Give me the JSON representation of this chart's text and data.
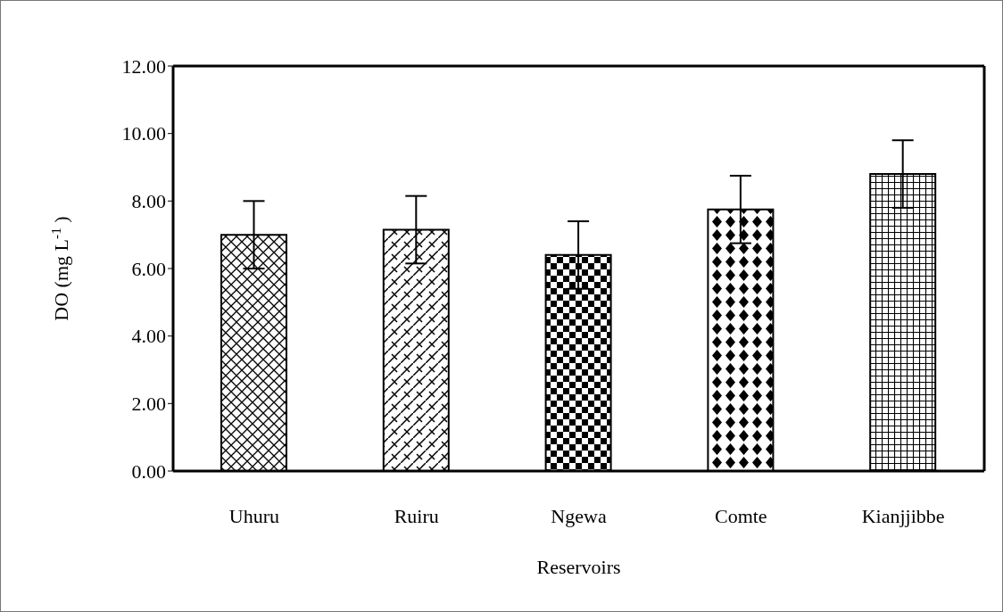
{
  "chart_data": {
    "type": "bar",
    "xlabel": "Reservoirs",
    "ylabel": "DO (mg L$^{-1}$ )",
    "categories": [
      "Uhuru",
      "Ruiru",
      "Ngewa",
      "Comte",
      "Kianjjibbe"
    ],
    "values": [
      7.0,
      7.15,
      6.4,
      7.75,
      8.8
    ],
    "errors": [
      1.0,
      1.0,
      1.0,
      1.0,
      1.0
    ],
    "colors": [
      "#000000",
      "#000000",
      "#000000",
      "#000000",
      "#000000"
    ],
    "ylim": [
      0,
      12
    ],
    "yticks": [
      {
        "value": 0,
        "label": "0.00"
      },
      {
        "value": 2,
        "label": "2.00"
      },
      {
        "value": 4,
        "label": "4.00"
      },
      {
        "value": 6,
        "label": "6.00"
      },
      {
        "value": 8,
        "label": "8.00"
      },
      {
        "value": 10,
        "label": "10.00"
      },
      {
        "value": 12,
        "label": "12.00"
      }
    ],
    "grid": false,
    "legend": false
  }
}
